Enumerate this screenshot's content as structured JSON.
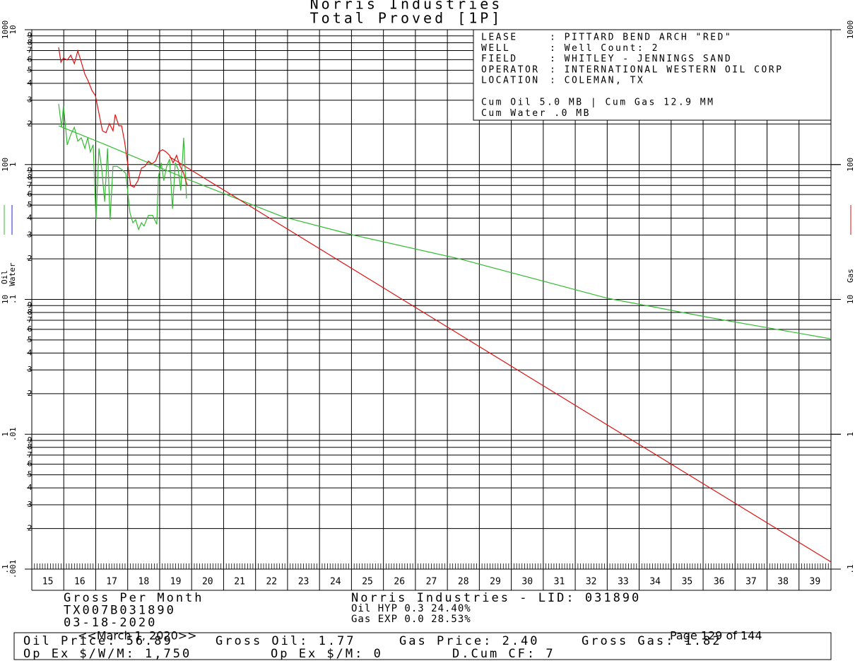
{
  "chart_data": {
    "type": "line",
    "title": "Norris Industries",
    "subtitle": "Total Proved [1P]",
    "log_y": true,
    "grid": true,
    "xlim": [
      15,
      40
    ],
    "xticks": [
      15,
      16,
      17,
      18,
      19,
      20,
      21,
      22,
      23,
      24,
      25,
      26,
      27,
      28,
      29,
      30,
      31,
      32,
      33,
      34,
      35,
      36,
      37,
      38,
      39
    ],
    "ylim": [
      0.1,
      1000
    ],
    "yticks": [
      {
        "value": 0.1,
        "label": ".1"
      },
      1,
      10,
      100,
      1000
    ],
    "water_yticks": [
      {
        "value": 0.001,
        "label": ".001"
      },
      {
        "value": 0.01,
        "label": ".01"
      },
      {
        "value": 0.1,
        "label": ".1"
      },
      1,
      10
    ],
    "y2lim": [
      0.1,
      1000
    ],
    "y2ticks": [
      {
        "value": 0.1,
        "label": ".1"
      },
      1,
      10,
      100,
      1000
    ],
    "y_minor_labels": [
      2,
      3,
      4,
      5,
      6,
      7,
      8,
      9
    ],
    "ylabel": "Oil",
    "ylabel_water": "Water",
    "y2label": "Gas",
    "oil_color": "#33bb33",
    "water_color": "#2222cc",
    "gas_color": "#dd1111",
    "series": [
      {
        "name": "Oil",
        "color": "#33bb33",
        "x": [
          15.84,
          15.93,
          15.99,
          16.11,
          16.22,
          16.33,
          16.44,
          16.55,
          16.66,
          16.75,
          16.83,
          16.92,
          17.01,
          17.1,
          17.19,
          17.28,
          17.37,
          17.45,
          17.54,
          17.67,
          17.81,
          17.94,
          18.07,
          18.16,
          18.25,
          18.34,
          18.43,
          18.51,
          18.65,
          18.78,
          18.91,
          18.96,
          19.05,
          19.13,
          19.22,
          19.31,
          19.4,
          19.49,
          19.58,
          19.66,
          19.75,
          19.84
        ],
        "values": [
          282,
          189,
          272,
          140,
          167,
          189,
          149,
          158,
          132,
          158,
          124,
          140,
          39,
          132,
          92,
          53,
          132,
          39,
          97,
          97,
          92,
          86,
          44,
          37,
          39,
          33,
          37,
          35,
          42,
          42,
          36,
          81,
          103,
          76,
          97,
          110,
          47,
          103,
          92,
          64,
          158,
          56
        ]
      },
      {
        "name": "Gas",
        "color": "#dd1111",
        "axis": "y2",
        "x": [
          15.84,
          15.91,
          15.99,
          16.11,
          16.22,
          16.33,
          16.44,
          16.55,
          16.66,
          16.77,
          16.88,
          16.99,
          17.1,
          17.21,
          17.32,
          17.43,
          17.54,
          17.61,
          17.72,
          17.81,
          17.9,
          17.98,
          18.09,
          18.2,
          18.32,
          18.43,
          18.54,
          18.65,
          18.76,
          18.87,
          18.98,
          19.09,
          19.2,
          19.31,
          19.42,
          19.53,
          19.64,
          19.75,
          19.86
        ],
        "values": [
          740,
          574,
          617,
          596,
          647,
          560,
          697,
          574,
          468,
          414,
          354,
          325,
          240,
          178,
          172,
          201,
          178,
          235,
          194,
          194,
          149,
          110,
          70,
          68,
          76,
          94,
          97,
          106,
          101,
          106,
          124,
          129,
          124,
          117,
          103,
          117,
          97,
          86,
          70
        ]
      }
    ],
    "forecasts": [
      {
        "color": "#33bb33",
        "x": [
          15.84,
          17.32,
          19.86,
          22.85,
          25.06,
          28.37,
          33.01,
          36.11,
          40.0
        ],
        "values": [
          194,
          140,
          78,
          41,
          30,
          20,
          10.2,
          7.4,
          5.1
        ]
      },
      {
        "color": "#dd1111",
        "axis": "y2",
        "x": [
          19.31,
          40.0
        ],
        "values": [
          114,
          0.113
        ]
      }
    ],
    "info_lines": [
      [
        "LEASE",
        ": PITTARD BEND ARCH \"RED\""
      ],
      [
        "WELL",
        ": Well Count: 2"
      ],
      [
        "FIELD",
        ": WHITLEY - JENNINGS SAND"
      ],
      [
        "OPERATOR",
        ": INTERNATIONAL WESTERN OIL CORP"
      ],
      [
        "LOCATION",
        ": COLEMAN, TX"
      ]
    ],
    "cum_lines": [
      "Cum Oil 5.0 MB | Cum Gas 12.9 MM",
      "Cum Water .0 MB"
    ],
    "footer_left": [
      "Gross Per Month",
      "TX007B031890",
      "03-18-2020"
    ],
    "footer_mid": [
      "Norris Industries - LID: 031890",
      "Oil HYP 0.3 24.40%",
      "Gas EXP 0.0 28.53%"
    ],
    "footer_box_1": [
      "Oil Price: 56.89",
      "Gross Oil: 1.77",
      "Gas Price: 2.40",
      "Gross Gas: 1.82"
    ],
    "footer_box_2": [
      "Op Ex $/W/M: 1,750",
      "Op Ex $/M: 0",
      "D.Cum CF: 7"
    ],
    "date_overlay": "<<March 1, 2020>>",
    "page_overlay": "Page 129 of 144"
  }
}
